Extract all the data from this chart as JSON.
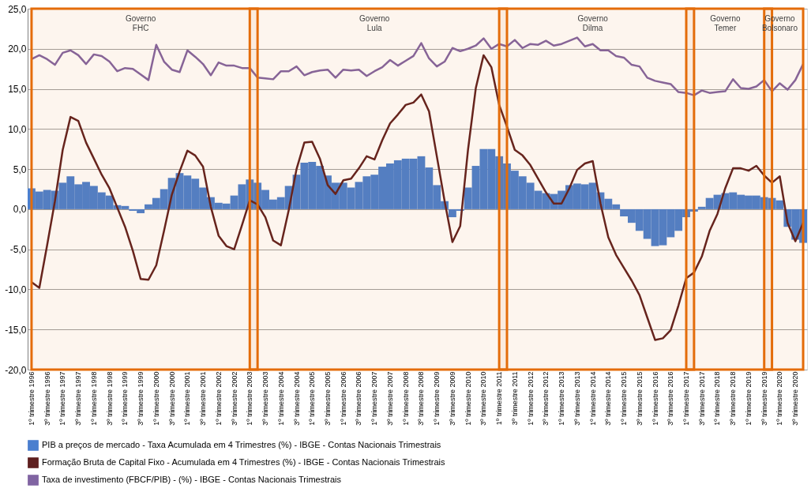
{
  "chart_data": {
    "type": "bar",
    "legend": "bottom",
    "grid": "y",
    "ylim": [
      -20,
      25
    ],
    "yticks": [
      {
        "value": -20,
        "label": "-20,0"
      },
      {
        "value": -15,
        "label": "-15,0"
      },
      {
        "value": -10,
        "label": "-10,0"
      },
      {
        "value": -5,
        "label": "-5,0"
      },
      {
        "value": 0,
        "label": "0,0"
      },
      {
        "value": 5,
        "label": "5,0"
      },
      {
        "value": 10,
        "label": "10,0"
      },
      {
        "value": 15,
        "label": "15,0"
      },
      {
        "value": 20,
        "label": "20,0"
      },
      {
        "value": 25,
        "label": "25,0"
      }
    ],
    "categories": [
      "1º trimestre 1996",
      null,
      "3º trimestre 1996",
      null,
      "1º trimestre 1997",
      null,
      "3º trimestre 1997",
      null,
      "1º trimestre 1998",
      null,
      "3º trimestre 1998",
      null,
      "1º trimestre 1999",
      null,
      "3º trimestre 1999",
      null,
      "1º trimestre 2000",
      null,
      "3º trimestre 2000",
      null,
      "1º trimestre 2001",
      null,
      "3º trimestre 2001",
      null,
      "1º trimestre 2002",
      null,
      "3º trimestre 2002",
      null,
      "1º trimestre 2003",
      null,
      "3º trimestre 2003",
      null,
      "1º trimestre 2004",
      null,
      "3º trimestre 2004",
      null,
      "1º trimestre 2005",
      null,
      "3º trimestre 2005",
      null,
      "1º trimestre 2006",
      null,
      "3º trimestre 2006",
      null,
      "1º trimestre 2007",
      null,
      "3º trimestre 2007",
      null,
      "1º trimestre 2008",
      null,
      "3º trimestre 2008",
      null,
      "1º trimestre 2009",
      null,
      "3º trimestre 2009",
      null,
      "1º trimestre 2010",
      null,
      "3º trimestre 2010",
      null,
      "1º trimestre 2011",
      null,
      "3º trimestre 2011",
      null,
      "1º trimestre 2012",
      null,
      "3º trimestre 2012",
      null,
      "1º trimestre 2013",
      null,
      "3º trimestre 2013",
      null,
      "1º trimestre 2014",
      null,
      "3º trimestre 2014",
      null,
      "1º trimestre 2015",
      null,
      "3º trimestre 2015",
      null,
      "1º trimestre 2016",
      null,
      "3º trimestre 2016",
      null,
      "1º trimestre 2017",
      null,
      "3º trimestre 2017",
      null,
      "1º trimestre 2018",
      null,
      "3º trimestre 2018",
      null,
      "1º trimestre 2019",
      null,
      "3º trimestre 2019",
      null,
      "1º trimestre 2020",
      null,
      "3º trimestre 2020",
      null
    ],
    "series": [
      {
        "name": "PIB a preços de mercado - Taxa Acumulada em 4 Trimestres (%) - IBGE - Contas Nacionais Trimestrais",
        "color": "#4a7fcf",
        "values": [
          2.6,
          2.2,
          2.4,
          2.3,
          3.3,
          4.1,
          3.1,
          3.4,
          2.9,
          2.1,
          1.7,
          0.5,
          0.4,
          -0.2,
          -0.5,
          0.6,
          1.4,
          2.5,
          3.9,
          4.5,
          4.2,
          3.8,
          2.7,
          1.5,
          0.8,
          0.7,
          1.7,
          3.1,
          3.7,
          3.3,
          2.4,
          1.2,
          1.5,
          2.9,
          4.3,
          5.8,
          5.9,
          5.4,
          4.2,
          3.3,
          3.3,
          2.7,
          3.4,
          4.1,
          4.3,
          5.3,
          5.7,
          6.1,
          6.3,
          6.3,
          6.6,
          5.2,
          3.0,
          1.0,
          -1.0,
          -0.2,
          2.7,
          5.4,
          7.5,
          7.5,
          6.6,
          5.7,
          4.8,
          4.1,
          3.3,
          2.3,
          2.0,
          1.9,
          2.3,
          3.0,
          3.2,
          3.1,
          3.3,
          2.1,
          1.3,
          0.6,
          -0.9,
          -1.7,
          -2.7,
          -3.7,
          -4.6,
          -4.5,
          -3.5,
          -2.7,
          -1.0,
          -0.3,
          0.3,
          1.4,
          1.8,
          2.0,
          2.1,
          1.8,
          1.7,
          1.7,
          1.5,
          1.4,
          1.1,
          -2.2,
          -3.8,
          -4.2
        ]
      },
      {
        "name": "Formação Bruta de Capital Fixo - Acumulada em 4 Trimestres (%)  - IBGE - Contas Nacionais Trimestrais",
        "type": "line",
        "color": "#5e1f1f",
        "values": [
          -9.1,
          -9.8,
          -4.5,
          1.0,
          7.4,
          11.5,
          11.0,
          8.3,
          6.3,
          4.3,
          2.6,
          0.2,
          -2.2,
          -5.2,
          -8.7,
          -8.8,
          -7.0,
          -2.7,
          1.8,
          4.7,
          7.3,
          6.7,
          5.3,
          0.3,
          -3.3,
          -4.6,
          -5.0,
          -2.0,
          1.1,
          0.6,
          -1.0,
          -3.9,
          -4.5,
          -0.1,
          5.0,
          8.3,
          8.4,
          6.3,
          3.0,
          1.9,
          3.6,
          3.8,
          5.1,
          6.6,
          6.2,
          8.6,
          10.7,
          11.8,
          13.0,
          13.3,
          14.3,
          12.2,
          6.6,
          1.0,
          -4.1,
          -2.1,
          7.4,
          15.1,
          19.2,
          17.7,
          13.0,
          10.3,
          7.4,
          6.7,
          5.5,
          3.8,
          2.1,
          0.7,
          0.7,
          2.6,
          4.9,
          5.7,
          6.0,
          0.7,
          -3.5,
          -5.7,
          -7.3,
          -8.9,
          -10.7,
          -13.5,
          -16.3,
          -16.1,
          -15.1,
          -12.0,
          -8.6,
          -7.9,
          -5.9,
          -2.7,
          -0.6,
          2.6,
          5.1,
          5.1,
          4.8,
          5.4,
          4.2,
          3.3,
          4.1,
          -1.7,
          -4.0,
          -1.7
        ]
      },
      {
        "name": "Taxa de investimento (FBCF/PIB) - (%) - IBGE - Contas Nacionais Trimestrais",
        "type": "line",
        "color": "#8064a2",
        "values": [
          18.7,
          19.2,
          18.7,
          18.0,
          19.5,
          19.8,
          19.2,
          18.1,
          19.3,
          19.1,
          18.4,
          17.2,
          17.6,
          17.5,
          16.8,
          16.1,
          20.5,
          18.4,
          17.4,
          17.1,
          19.8,
          19.0,
          18.1,
          16.7,
          18.3,
          17.9,
          17.9,
          17.6,
          17.6,
          16.4,
          16.3,
          16.2,
          17.2,
          17.2,
          17.8,
          16.7,
          17.1,
          17.3,
          17.4,
          16.4,
          17.4,
          17.3,
          17.4,
          16.6,
          17.2,
          17.7,
          18.6,
          17.9,
          18.5,
          19.1,
          20.7,
          18.8,
          17.8,
          18.4,
          20.1,
          19.7,
          20.0,
          20.4,
          21.3,
          20.0,
          20.6,
          20.3,
          21.1,
          20.1,
          20.6,
          20.5,
          21.0,
          20.4,
          20.6,
          21.0,
          21.4,
          20.3,
          20.6,
          19.8,
          19.8,
          19.1,
          18.9,
          18.0,
          17.8,
          16.4,
          16.0,
          15.8,
          15.6,
          14.6,
          14.5,
          14.2,
          14.8,
          14.5,
          14.6,
          14.7,
          16.2,
          15.1,
          15.0,
          15.3,
          16.1,
          14.7,
          15.7,
          14.9,
          16.1,
          18.1
        ]
      }
    ],
    "bands": [
      {
        "axis": "x",
        "from": "1º trimestre 1996",
        "to": "1º trimestre 2003",
        "label": "Governo FHC",
        "color": "#e46c0a"
      },
      {
        "axis": "x",
        "from": "1º trimestre 2003",
        "to": "1º trimestre 2011",
        "label": "Governo Lula",
        "color": "#e46c0a"
      },
      {
        "axis": "x",
        "from": "1º trimestre 2011",
        "to": "1º trimestre 2017",
        "label": "Governo Dilma",
        "color": "#e46c0a"
      },
      {
        "axis": "x",
        "from": "1º trimestre 2017",
        "to": "3º trimestre 2019",
        "label": "Governo Temer",
        "color": "#e46c0a"
      },
      {
        "axis": "x",
        "from": "3º trimestre 2019",
        "to": "3º trimestre 2020",
        "label": "Governo Bolsonaro",
        "color": "#e46c0a"
      }
    ]
  }
}
